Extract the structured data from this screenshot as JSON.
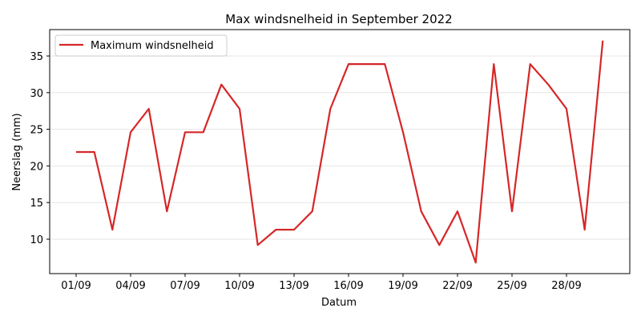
{
  "chart_data": {
    "type": "line",
    "title": "Max windsnelheid in September 2022",
    "xlabel": "Datum",
    "ylabel": "Neerslag (mm)",
    "ylim": [
      5.3,
      38.6
    ],
    "yticks": [
      10,
      15,
      20,
      25,
      30,
      35
    ],
    "xtick_labels": [
      "01/09",
      "04/09",
      "07/09",
      "10/09",
      "13/09",
      "16/09",
      "19/09",
      "22/09",
      "25/09",
      "28/09"
    ],
    "xtick_days": [
      1,
      4,
      7,
      10,
      13,
      16,
      19,
      22,
      25,
      28
    ],
    "grid": "y-only",
    "legend_position": "upper left",
    "x": [
      "01/09",
      "02/09",
      "03/09",
      "04/09",
      "05/09",
      "06/09",
      "07/09",
      "08/09",
      "09/09",
      "10/09",
      "11/09",
      "12/09",
      "13/09",
      "14/09",
      "15/09",
      "16/09",
      "17/09",
      "18/09",
      "19/09",
      "20/09",
      "21/09",
      "22/09",
      "23/09",
      "24/09",
      "25/09",
      "26/09",
      "27/09",
      "28/09",
      "29/09",
      "30/09"
    ],
    "series": [
      {
        "name": "Maximum windsnelheid",
        "color": "#d62728",
        "values": [
          21.9,
          21.9,
          11.3,
          24.6,
          27.8,
          13.8,
          24.6,
          24.6,
          31.1,
          27.8,
          9.2,
          11.3,
          11.3,
          13.8,
          27.8,
          33.9,
          33.9,
          33.9,
          24.6,
          13.8,
          9.2,
          13.8,
          6.8,
          33.9,
          13.8,
          33.9,
          31.1,
          27.8,
          11.3,
          37.1
        ]
      }
    ]
  }
}
